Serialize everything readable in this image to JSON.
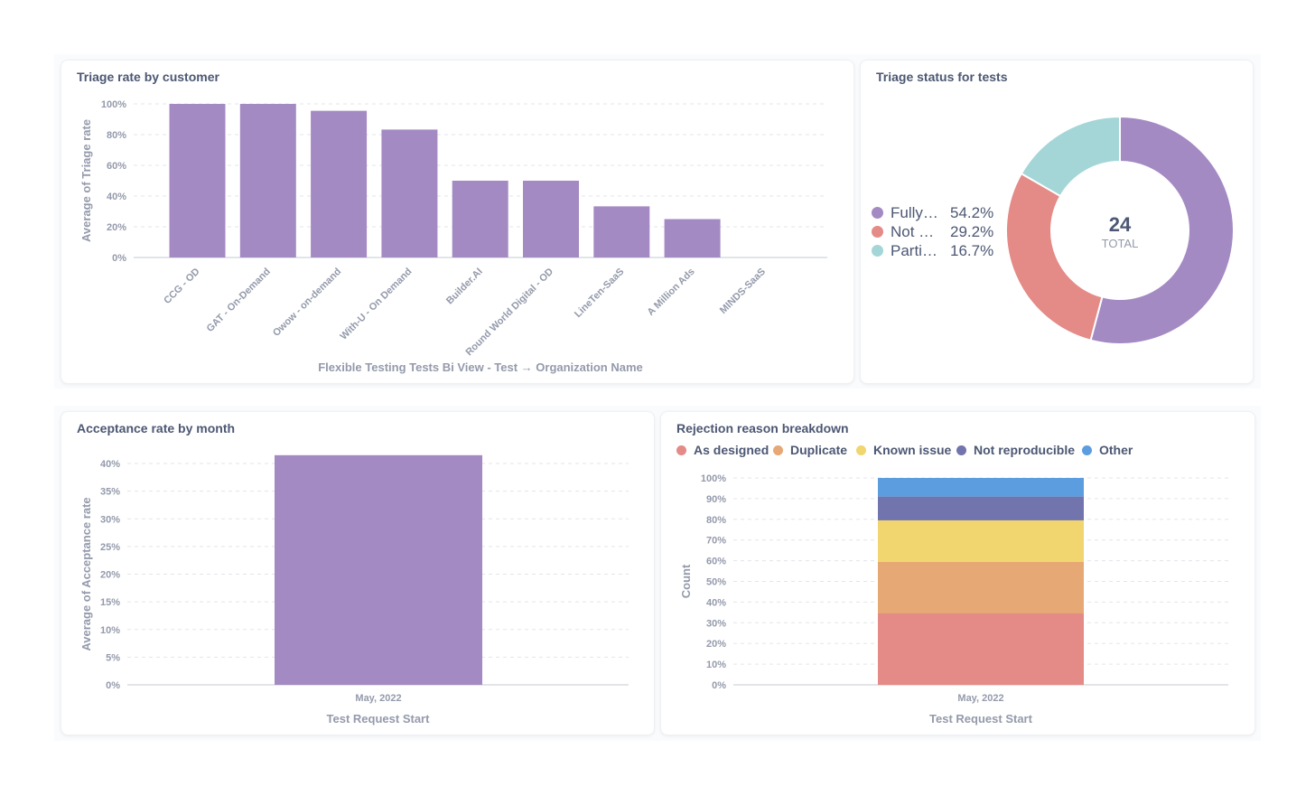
{
  "colors": {
    "purple": "#a48ac3",
    "red": "#e48a87",
    "teal": "#a4d6d7",
    "orange": "#e6a874",
    "yellow": "#f1d56f",
    "navy": "#7274ad",
    "blue": "#5b9ddf",
    "grid": "#e3e5ea",
    "axis": "#949aab"
  },
  "cards": {
    "triage_rate": {
      "title": "Triage rate by customer"
    },
    "triage_status": {
      "title": "Triage status for tests",
      "total_value": "24",
      "total_label": "TOTAL",
      "legend": [
        {
          "name": "Fully…",
          "pct": "54.2%",
          "color": "#a48ac3"
        },
        {
          "name": "Not …",
          "pct": "29.2%",
          "color": "#e48a87"
        },
        {
          "name": "Parti…",
          "pct": "16.7%",
          "color": "#a4d6d7"
        }
      ]
    },
    "acceptance": {
      "title": "Acceptance rate by month"
    },
    "rejection": {
      "title": "Rejection reason breakdown",
      "legend": [
        {
          "name": "As designed",
          "color": "#e48a87"
        },
        {
          "name": "Duplicate",
          "color": "#e6a874"
        },
        {
          "name": "Known issue",
          "color": "#f1d56f"
        },
        {
          "name": "Not reproducible",
          "color": "#7274ad"
        },
        {
          "name": "Other",
          "color": "#5b9ddf"
        }
      ]
    }
  },
  "chart_data": [
    {
      "type": "bar",
      "title": "Triage rate by customer",
      "categories": [
        "CCG - OD",
        "GAT - On-Demand",
        "Owow - on-demand",
        "With-U - On Demand",
        "Builder.AI",
        "Round World Digital - OD",
        "LineTen-SaaS",
        "A Million Ads",
        "MINDS-SaaS"
      ],
      "values": [
        100,
        100,
        95.5,
        83.3,
        50,
        50,
        33.3,
        25,
        0
      ],
      "ylim": [
        0,
        100
      ],
      "yticks": [
        "0%",
        "20%",
        "40%",
        "60%",
        "80%",
        "100%"
      ],
      "xlabel": "Flexible Testing Tests Bi View - Test → Organization Name",
      "ylabel": "Average of Triage rate",
      "grid": true
    },
    {
      "type": "pie",
      "title": "Triage status for tests",
      "categories": [
        "Fully…",
        "Not …",
        "Parti…"
      ],
      "values": [
        54.2,
        29.2,
        16.7
      ],
      "total": 24
    },
    {
      "type": "bar",
      "title": "Acceptance rate by month",
      "categories": [
        "May, 2022"
      ],
      "values": [
        41.5
      ],
      "ylim": [
        0,
        40
      ],
      "yticks": [
        "0%",
        "5%",
        "10%",
        "15%",
        "20%",
        "25%",
        "30%",
        "35%",
        "40%"
      ],
      "xlabel": "Test Request Start",
      "ylabel": "Average of Acceptance rate",
      "grid": true
    },
    {
      "type": "bar",
      "stacked": true,
      "title": "Rejection reason breakdown",
      "categories": [
        "May, 2022"
      ],
      "series": [
        {
          "name": "As designed",
          "values": [
            34.5
          ]
        },
        {
          "name": "Duplicate",
          "values": [
            25
          ]
        },
        {
          "name": "Known issue",
          "values": [
            20
          ]
        },
        {
          "name": "Not reproducible",
          "values": [
            11.5
          ]
        },
        {
          "name": "Other",
          "values": [
            9
          ]
        }
      ],
      "ylim": [
        0,
        100
      ],
      "yticks": [
        "0%",
        "10%",
        "20%",
        "30%",
        "40%",
        "50%",
        "60%",
        "70%",
        "80%",
        "90%",
        "100%"
      ],
      "xlabel": "Test Request Start",
      "ylabel": "Count",
      "legend": "top",
      "grid": true
    }
  ]
}
